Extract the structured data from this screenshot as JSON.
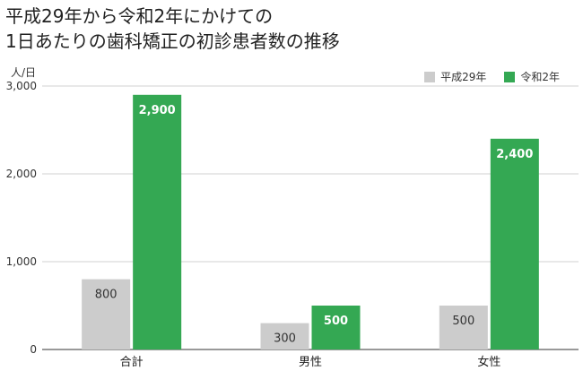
{
  "chart_data": {
    "type": "bar",
    "title_lines": [
      "平成29年から令和2年にかけての",
      "1日あたりの歯科矯正の初診患者数の推移"
    ],
    "unit_label": "人/日",
    "categories": [
      "合計",
      "男性",
      "女性"
    ],
    "series": [
      {
        "name": "平成29年",
        "color": "#cccccc",
        "label_color": "#333333",
        "values": [
          800,
          300,
          500
        ],
        "labels": [
          "800",
          "300",
          "500"
        ]
      },
      {
        "name": "令和2年",
        "color": "#34a853",
        "label_color": "#ffffff",
        "values": [
          2900,
          500,
          2400
        ],
        "labels": [
          "2,900",
          "500",
          "2,400"
        ]
      }
    ],
    "yticks": [
      0,
      1000,
      2000,
      3000
    ],
    "ytick_labels": [
      "0",
      "1,000",
      "2,000",
      "3,000"
    ],
    "ylim": [
      0,
      3000
    ],
    "legend_position": "top-right",
    "grid": true
  }
}
